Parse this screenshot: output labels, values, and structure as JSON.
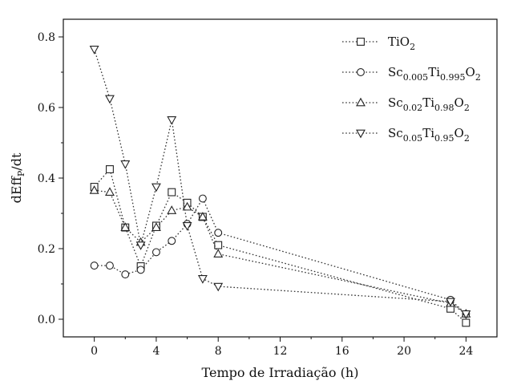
{
  "chart_data": {
    "type": "line",
    "title": "",
    "xlabel": "Tempo de Irradiação (h)",
    "ylabel": "dEff",
    "ylabel_sub": "P",
    "ylabel_suffix": "/dt",
    "xlim": [
      -2,
      26
    ],
    "ylim": [
      -0.05,
      0.85
    ],
    "xticks": [
      0,
      4,
      8,
      12,
      16,
      20,
      24
    ],
    "yticks": [
      0.0,
      0.2,
      0.4,
      0.6,
      0.8
    ],
    "xtick_labels": [
      "0",
      "4",
      "8",
      "12",
      "16",
      "20",
      "24"
    ],
    "ytick_labels": [
      "0.0",
      "0.2",
      "0.4",
      "0.6",
      "0.8"
    ],
    "grid": false,
    "legend_position": "top-right",
    "series": [
      {
        "name": "TiO2",
        "legend_parts": [
          [
            "TiO",
            "n"
          ],
          [
            "2",
            "s"
          ]
        ],
        "marker": "square",
        "x": [
          0,
          1,
          2,
          3,
          4,
          5,
          6,
          7,
          8,
          23,
          24
        ],
        "y": [
          0.375,
          0.425,
          0.26,
          0.15,
          0.265,
          0.36,
          0.33,
          0.29,
          0.21,
          0.03,
          -0.01
        ]
      },
      {
        "name": "Sc0.005Ti0.995O2",
        "legend_parts": [
          [
            "Sc",
            "n"
          ],
          [
            "0.005",
            "s"
          ],
          [
            "Ti",
            "n"
          ],
          [
            "0.995",
            "s"
          ],
          [
            "O",
            "n"
          ],
          [
            "2",
            "s"
          ]
        ],
        "marker": "circle",
        "x": [
          0,
          1,
          2,
          3,
          4,
          5,
          6,
          7,
          8,
          23,
          24
        ],
        "y": [
          0.152,
          0.152,
          0.127,
          0.14,
          0.19,
          0.222,
          0.27,
          0.342,
          0.245,
          0.055,
          0.015
        ]
      },
      {
        "name": "Sc0.02Ti0.98O2",
        "legend_parts": [
          [
            "Sc",
            "n"
          ],
          [
            "0.02",
            "s"
          ],
          [
            "Ti",
            "n"
          ],
          [
            "0.98",
            "s"
          ],
          [
            "O",
            "n"
          ],
          [
            "2",
            "s"
          ]
        ],
        "marker": "triangle-up",
        "x": [
          0,
          1,
          2,
          3,
          4,
          5,
          6,
          7,
          8,
          23,
          24
        ],
        "y": [
          0.365,
          0.36,
          0.26,
          0.218,
          0.26,
          0.308,
          0.318,
          0.29,
          0.185,
          0.045,
          0.015
        ]
      },
      {
        "name": "Sc0.05Ti0.95O2",
        "legend_parts": [
          [
            "Sc",
            "n"
          ],
          [
            "0.05",
            "s"
          ],
          [
            "Ti",
            "n"
          ],
          [
            "0.95",
            "s"
          ],
          [
            "O",
            "n"
          ],
          [
            "2",
            "s"
          ]
        ],
        "marker": "triangle-down",
        "x": [
          0,
          1,
          2,
          3,
          4,
          5,
          6,
          7,
          8,
          23,
          24
        ],
        "y": [
          0.765,
          0.625,
          0.44,
          0.21,
          0.375,
          0.565,
          0.265,
          0.115,
          0.093,
          0.05,
          0.015
        ]
      }
    ]
  }
}
